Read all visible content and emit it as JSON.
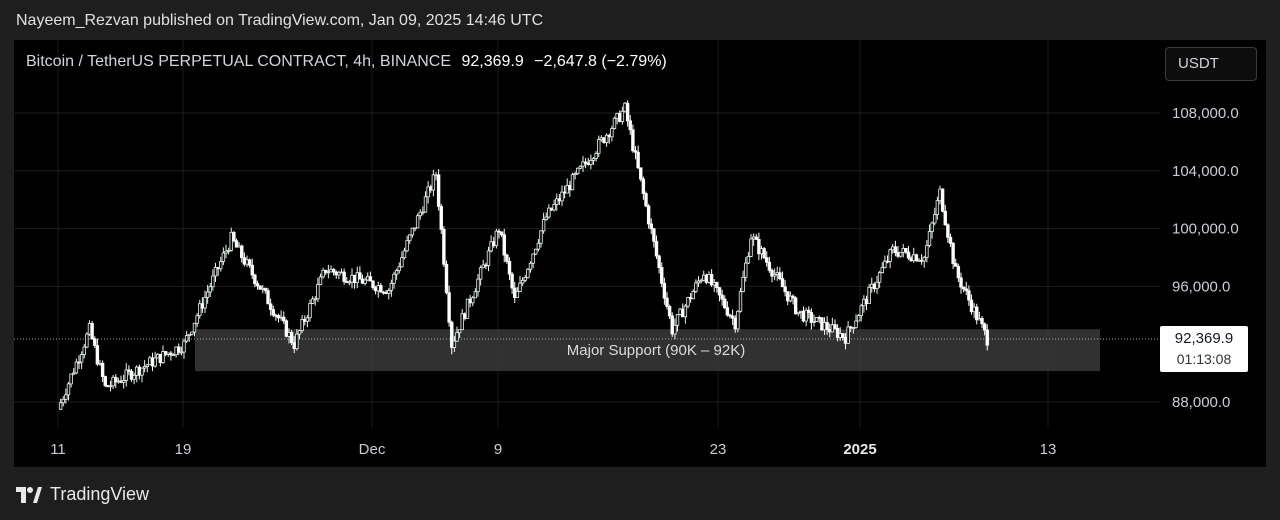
{
  "header": {
    "published": "Nayeem_Rezvan published on TradingView.com, Jan 09, 2025 14:46 UTC"
  },
  "legend": {
    "symbol": "Bitcoin / TetherUS PERPETUAL CONTRACT, 4h, BINANCE",
    "price": "92,369.9",
    "change": "−2,647.8 (−2.79%)"
  },
  "unit_button": "USDT",
  "price_tag": {
    "price": "92,369.9",
    "countdown": "01:13:08"
  },
  "annotation": {
    "label": "Major Support (90K – 92K)",
    "low": 90000,
    "high": 92000
  },
  "footer": {
    "brand": "TradingView"
  },
  "colors": {
    "background": "#000000",
    "candle_up": "#e8f5e9",
    "candle_down": "#ffffff",
    "support_box": "#3a3a3a",
    "current_price_line": "#aaaaaa"
  },
  "chart_data": {
    "type": "candlestick",
    "timeframe": "4h",
    "y_ticks": [
      "108,000.0",
      "104,000.0",
      "100,000.0",
      "96,000.0",
      "88,000.0"
    ],
    "x_ticks": [
      "11",
      "19",
      "Dec",
      "9",
      "23",
      "2025",
      "13"
    ],
    "ylim": [
      86000,
      110000
    ],
    "current_price": 92369.9,
    "key_points": [
      {
        "x": "Nov 11",
        "price": 87500
      },
      {
        "x": "Nov 13",
        "price": 93000
      },
      {
        "x": "Nov 14",
        "price": 89000
      },
      {
        "x": "Nov 19",
        "price": 92000
      },
      {
        "x": "Nov 22",
        "price": 99300
      },
      {
        "x": "Nov 26",
        "price": 92000
      },
      {
        "x": "Nov 28",
        "price": 97200
      },
      {
        "x": "Dec 2",
        "price": 95800
      },
      {
        "x": "Dec 5",
        "price": 103800
      },
      {
        "x": "Dec 6",
        "price": 92000
      },
      {
        "x": "Dec 9",
        "price": 100000
      },
      {
        "x": "Dec 10",
        "price": 95000
      },
      {
        "x": "Dec 12",
        "price": 100800
      },
      {
        "x": "Dec 17",
        "price": 108300
      },
      {
        "x": "Dec 20",
        "price": 93000
      },
      {
        "x": "Dec 22",
        "price": 97000
      },
      {
        "x": "Dec 24",
        "price": 93500
      },
      {
        "x": "Dec 25",
        "price": 99500
      },
      {
        "x": "Dec 28",
        "price": 94200
      },
      {
        "x": "Dec 31",
        "price": 92500
      },
      {
        "x": "Jan 3",
        "price": 98500
      },
      {
        "x": "Jan 5",
        "price": 98000
      },
      {
        "x": "Jan 6",
        "price": 102500
      },
      {
        "x": "Jan 7",
        "price": 97000
      },
      {
        "x": "Jan 9",
        "price": 92369.9
      }
    ]
  }
}
